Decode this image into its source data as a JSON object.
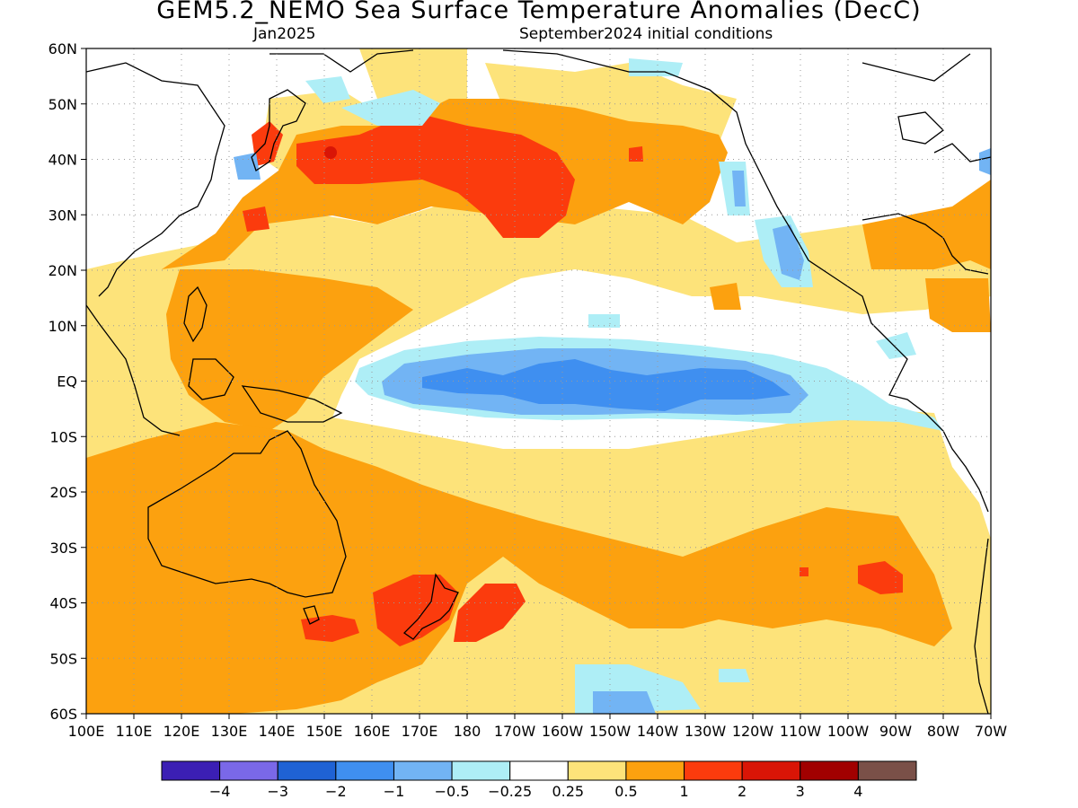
{
  "title": "GEM5.2_NEMO Sea Surface Temperature Anomalies (DecC)",
  "subtitle_left": "Jan2025",
  "subtitle_right": "September2024 initial conditions",
  "map": {
    "lat_labels": [
      "60N",
      "50N",
      "40N",
      "30N",
      "20N",
      "10N",
      "EQ",
      "10S",
      "20S",
      "30S",
      "40S",
      "50S",
      "60S"
    ],
    "lon_labels": [
      "100E",
      "110E",
      "120E",
      "130E",
      "140E",
      "150E",
      "160E",
      "170E",
      "180",
      "170W",
      "160W",
      "150W",
      "140W",
      "130W",
      "120W",
      "110W",
      "100W",
      "90W",
      "80W",
      "70W"
    ],
    "coastline_color": "#000000",
    "grid": "dotted"
  },
  "legend": {
    "colors": [
      "#3b1fb4",
      "#7a68e8",
      "#1f62d4",
      "#3f8ff0",
      "#72b4f4",
      "#aeeef6",
      "#ffffff",
      "#fde37a",
      "#fca10f",
      "#fb3b0d",
      "#d91506",
      "#a10000",
      "#7a5048"
    ],
    "labels": [
      "−4",
      "−3",
      "−2",
      "−1",
      "−0.5",
      "−0.25",
      "0.25",
      "0.5",
      "1",
      "2",
      "3",
      "4"
    ]
  },
  "palette": {
    "cool_strong": "#3f8ff0",
    "cool_mid": "#72b4f4",
    "cool_light": "#aeeef6",
    "warm_light": "#fde37a",
    "warm_mid": "#fca10f",
    "warm_strong": "#fb3b0d",
    "warm_vstrong": "#d91506"
  }
}
